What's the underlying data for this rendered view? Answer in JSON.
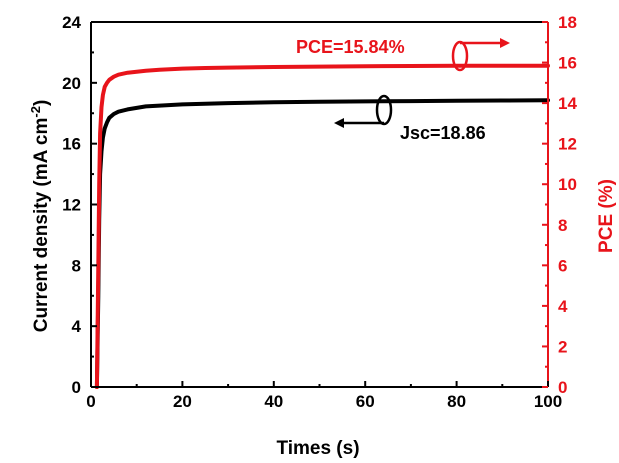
{
  "chart_data": {
    "type": "line",
    "xlabel": "Times (s)",
    "ylabel_left": "Current density (mA cm",
    "ylabel_left_sup": "-2",
    "ylabel_left_end": ")",
    "ylabel_right": "PCE (%)",
    "xlim": [
      0,
      100
    ],
    "ylim_left": [
      0,
      24
    ],
    "ylim_right": [
      0,
      18
    ],
    "x_ticks": [
      0,
      20,
      40,
      60,
      80,
      100
    ],
    "y_left_ticks": [
      0,
      4,
      8,
      12,
      16,
      20,
      24
    ],
    "y_right_ticks": [
      0,
      2,
      4,
      6,
      8,
      10,
      12,
      14,
      16,
      18
    ],
    "grid": false,
    "colors": {
      "jsc": "#000000",
      "pce": "#e8141b"
    },
    "series": [
      {
        "axis": "left",
        "x": [
          1.3,
          1.6,
          1.8,
          2.0,
          2.3,
          2.6,
          3,
          3.5,
          4,
          5,
          6,
          8,
          10,
          12,
          15,
          20,
          25,
          30,
          40,
          50,
          60,
          70,
          80,
          90,
          100
        ],
        "y": [
          0,
          6,
          11,
          14,
          15.5,
          16.4,
          17.0,
          17.4,
          17.7,
          17.95,
          18.1,
          18.25,
          18.35,
          18.45,
          18.5,
          18.58,
          18.63,
          18.67,
          18.72,
          18.75,
          18.78,
          18.8,
          18.82,
          18.84,
          18.86
        ]
      },
      {
        "axis": "right",
        "x": [
          1.3,
          1.6,
          1.8,
          2.0,
          2.3,
          2.6,
          3,
          3.5,
          4,
          5,
          6,
          8,
          10,
          12,
          15,
          20,
          25,
          30,
          40,
          50,
          60,
          70,
          80,
          90,
          100
        ],
        "y": [
          0,
          6,
          10,
          12.5,
          13.8,
          14.4,
          14.8,
          15.0,
          15.15,
          15.3,
          15.4,
          15.5,
          15.55,
          15.6,
          15.65,
          15.7,
          15.73,
          15.75,
          15.78,
          15.8,
          15.82,
          15.83,
          15.84,
          15.84,
          15.84
        ]
      }
    ],
    "annotations": {
      "pce": "PCE=15.84%",
      "jsc": "Jsc=18.86"
    }
  }
}
